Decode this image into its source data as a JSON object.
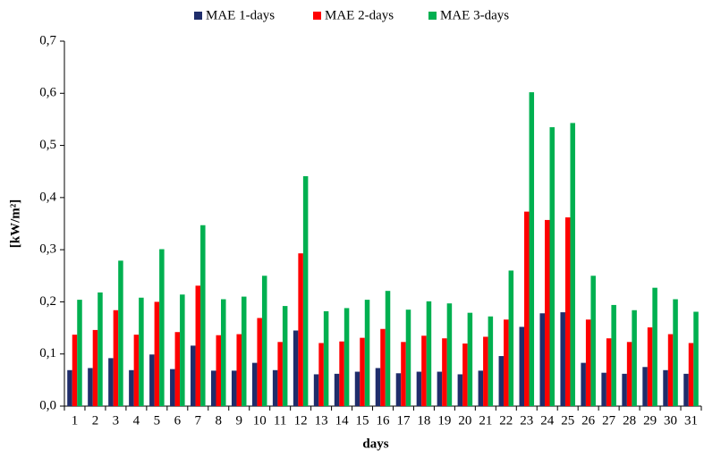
{
  "chart_data": {
    "type": "bar",
    "x_label": "days",
    "y_label": "[kW/m²]",
    "categories": [
      "1",
      "2",
      "3",
      "4",
      "5",
      "6",
      "7",
      "8",
      "9",
      "10",
      "11",
      "12",
      "13",
      "14",
      "15",
      "16",
      "17",
      "18",
      "19",
      "20",
      "21",
      "22",
      "23",
      "24",
      "25",
      "26",
      "27",
      "28",
      "29",
      "30",
      "31"
    ],
    "series": [
      {
        "name": "MAE 1-days",
        "color": "#1f2d6b",
        "values": [
          0.069,
          0.073,
          0.092,
          0.069,
          0.099,
          0.071,
          0.116,
          0.068,
          0.068,
          0.083,
          0.069,
          0.145,
          0.061,
          0.062,
          0.066,
          0.073,
          0.063,
          0.066,
          0.066,
          0.061,
          0.068,
          0.096,
          0.152,
          0.178,
          0.18,
          0.083,
          0.064,
          0.062,
          0.075,
          0.069,
          0.062
        ]
      },
      {
        "name": "MAE 2-days",
        "color": "#ff0000",
        "values": [
          0.137,
          0.146,
          0.184,
          0.137,
          0.2,
          0.142,
          0.231,
          0.136,
          0.138,
          0.169,
          0.123,
          0.293,
          0.121,
          0.124,
          0.131,
          0.148,
          0.123,
          0.135,
          0.13,
          0.12,
          0.133,
          0.166,
          0.373,
          0.357,
          0.362,
          0.166,
          0.13,
          0.123,
          0.151,
          0.138,
          0.121
        ]
      },
      {
        "name": "MAE 3-days",
        "color": "#00b050",
        "values": [
          0.204,
          0.218,
          0.279,
          0.208,
          0.301,
          0.214,
          0.347,
          0.205,
          0.21,
          0.25,
          0.192,
          0.441,
          0.182,
          0.188,
          0.204,
          0.221,
          0.185,
          0.201,
          0.197,
          0.179,
          0.172,
          0.26,
          0.602,
          0.535,
          0.543,
          0.25,
          0.194,
          0.184,
          0.227,
          0.205,
          0.181
        ]
      }
    ],
    "ylim": [
      0,
      0.7
    ],
    "yticks": [
      {
        "value": 0,
        "label": "0,0"
      },
      {
        "value": 0.1,
        "label": "0,1"
      },
      {
        "value": 0.2,
        "label": "0,2"
      },
      {
        "value": 0.3,
        "label": "0,3"
      },
      {
        "value": 0.4,
        "label": "0,4"
      },
      {
        "value": 0.5,
        "label": "0,5"
      },
      {
        "value": 0.6,
        "label": "0,6"
      },
      {
        "value": 0.7,
        "label": "0,7"
      }
    ],
    "grid": false,
    "legend": "top"
  }
}
